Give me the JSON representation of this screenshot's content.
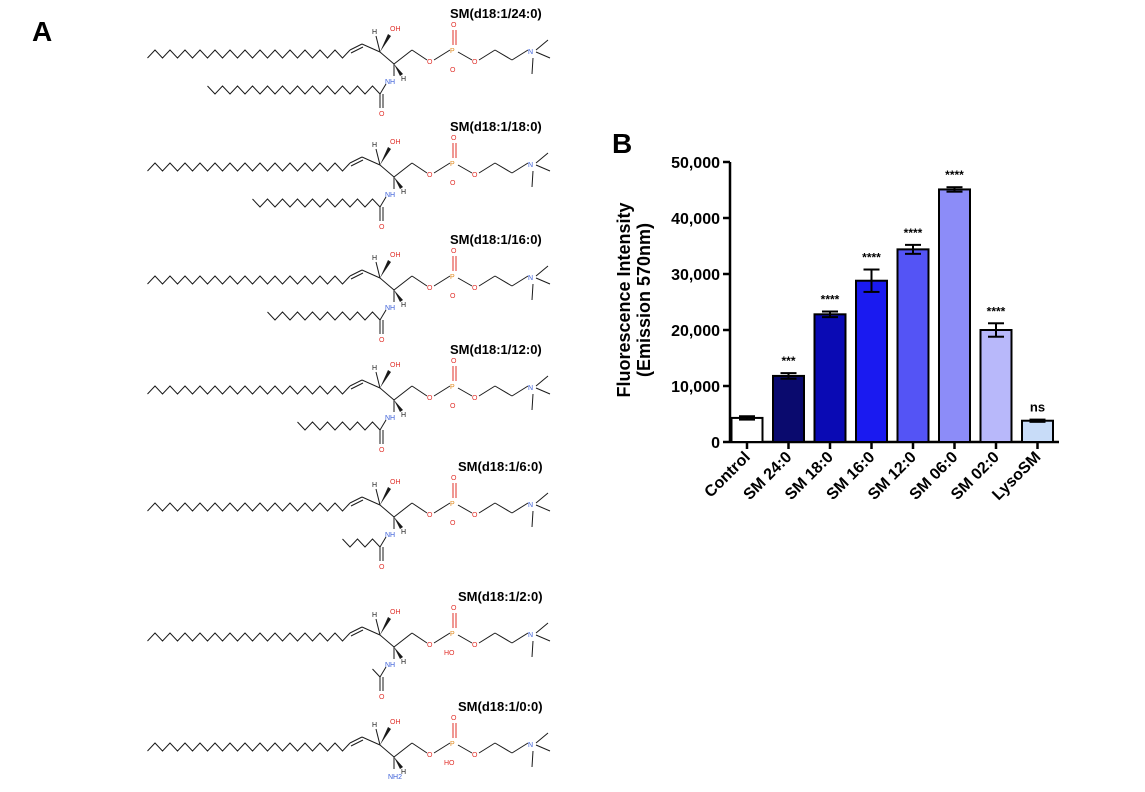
{
  "panels": {
    "a": "A",
    "b": "B"
  },
  "molecules": [
    {
      "name": "SM(d18:1/24:0)",
      "acyl_carbons": 24
    },
    {
      "name": "SM(d18:1/18:0)",
      "acyl_carbons": 18
    },
    {
      "name": "SM(d18:1/16:0)",
      "acyl_carbons": 16
    },
    {
      "name": "SM(d18:1/12:0)",
      "acyl_carbons": 12
    },
    {
      "name": "SM(d18:1/6:0)",
      "acyl_carbons": 6
    },
    {
      "name": "SM(d18:1/2:0)",
      "acyl_carbons": 2
    },
    {
      "name": "SM(d18:1/0:0)",
      "acyl_carbons": 0
    }
  ],
  "atom_labels": {
    "oh": "OH",
    "h": "H",
    "nh": "NH",
    "nh2": "NH2",
    "o": "O",
    "o_minus": "O",
    "p": "P",
    "ho": "HO",
    "n_plus": "N"
  },
  "colors": {
    "oxygen": "#e0302a",
    "nitrogen": "#3a5ed8",
    "phosphorus": "#e08a1e",
    "bond": "#1a1a1a"
  },
  "chart_data": {
    "type": "bar",
    "title": "",
    "ylabel_line1": "Fluorescence Intensity",
    "ylabel_line2": "(Emission 570nm)",
    "xlabel": "",
    "ylim": [
      0,
      50000
    ],
    "yticks": [
      0,
      10000,
      20000,
      30000,
      40000,
      50000
    ],
    "ytick_labels": [
      "0",
      "10,000",
      "20,000",
      "30,000",
      "40,000",
      "50,000"
    ],
    "categories": [
      "Control",
      "SM 24:0",
      "SM 18:0",
      "SM 16:0",
      "SM 12:0",
      "SM 06:0",
      "SM 02:0",
      "LysoSM"
    ],
    "values": [
      4300,
      11800,
      22800,
      28800,
      34400,
      45100,
      20000,
      3800
    ],
    "errors": [
      300,
      500,
      500,
      2000,
      800,
      400,
      1200,
      200
    ],
    "significance": [
      "",
      "***",
      "****",
      "****",
      "****",
      "****",
      "****",
      "ns"
    ],
    "bar_colors": [
      "#ffffff",
      "#0a0a6e",
      "#0a0ab4",
      "#1a1af0",
      "#5454f5",
      "#8c8cf8",
      "#b8b8fa",
      "#c8dcf8"
    ]
  }
}
